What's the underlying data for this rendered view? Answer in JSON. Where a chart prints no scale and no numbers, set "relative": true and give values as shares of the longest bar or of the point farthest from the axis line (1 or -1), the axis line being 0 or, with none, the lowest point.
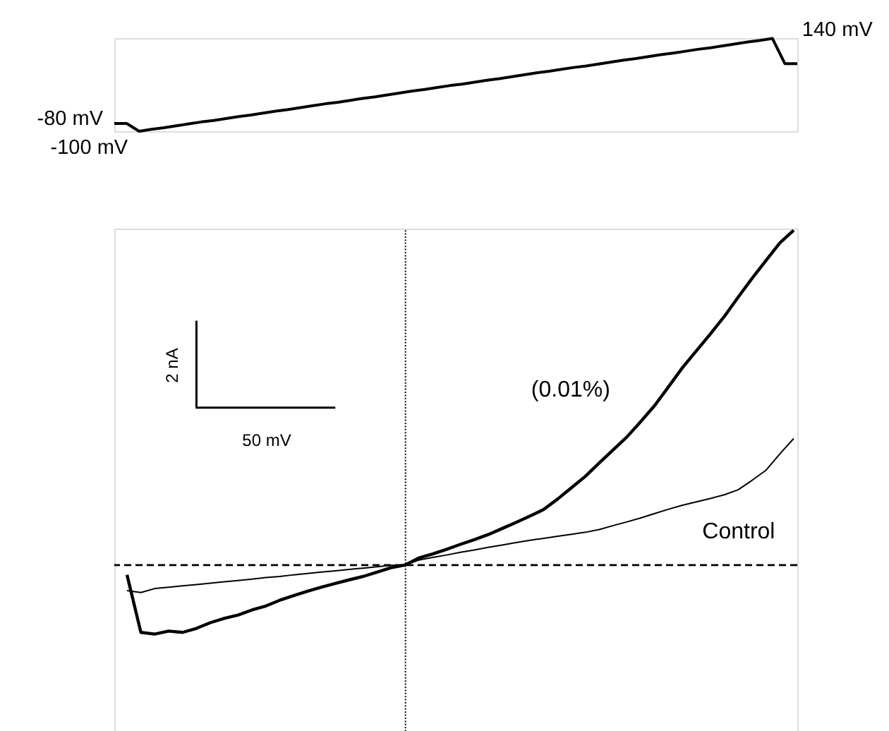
{
  "chart_data": [
    {
      "type": "line",
      "categories": [
        null,
        null,
        null,
        null,
        null,
        null,
        null,
        null,
        null,
        null,
        null,
        null,
        null,
        null,
        null,
        null,
        null,
        null,
        null,
        null,
        null,
        null,
        null,
        null,
        null,
        null,
        null,
        null,
        null,
        null,
        null,
        null,
        null,
        null,
        null,
        null,
        null,
        null,
        null,
        null,
        null,
        null,
        null,
        null,
        null,
        null,
        null,
        null,
        null,
        null,
        null,
        null,
        null,
        null,
        null,
        null
      ],
      "values": [
        -80,
        -80,
        -100,
        -95,
        -91,
        -86,
        -81,
        -76,
        -72,
        -67,
        -62,
        -58,
        -53,
        -48,
        -44,
        -39,
        -34,
        -29,
        -25,
        -20,
        -15,
        -11,
        -6,
        -1,
        4,
        8,
        13,
        18,
        22,
        27,
        32,
        36,
        41,
        46,
        51,
        55,
        60,
        65,
        69,
        74,
        79,
        84,
        88,
        93,
        98,
        102,
        107,
        112,
        116,
        121,
        126,
        131,
        135,
        140,
        75,
        75
      ],
      "color": "#000000",
      "value_labels": [
        "-80 mV",
        null,
        "-100 mV",
        null,
        null,
        null,
        null,
        null,
        null,
        null,
        null,
        null,
        null,
        null,
        null,
        null,
        null,
        null,
        null,
        null,
        null,
        null,
        null,
        null,
        null,
        null,
        null,
        null,
        null,
        null,
        null,
        null,
        null,
        null,
        null,
        null,
        null,
        null,
        null,
        null,
        null,
        null,
        null,
        null,
        null,
        null,
        null,
        null,
        null,
        null,
        null,
        null,
        null,
        "140 mV",
        null,
        null
      ],
      "tick_labels": false
    },
    {
      "type": "line",
      "relative": true,
      "tick_labels": false,
      "categories": [
        null,
        null,
        null,
        null,
        null,
        null,
        null,
        null,
        null,
        null,
        null,
        null,
        null,
        null,
        null,
        null,
        null,
        null,
        null,
        null,
        null,
        null,
        null,
        null,
        null,
        null,
        null,
        null,
        null,
        null,
        null,
        null,
        null,
        null,
        null,
        null,
        null,
        null,
        null,
        null,
        null,
        null,
        null,
        null,
        null,
        null,
        null,
        null,
        null
      ],
      "series": [
        {
          "name": "(0.01%)",
          "color": "#000000",
          "values": [
            -0.029,
            -0.201,
            -0.206,
            -0.197,
            -0.201,
            -0.189,
            -0.172,
            -0.159,
            -0.149,
            -0.134,
            -0.122,
            -0.105,
            -0.091,
            -0.078,
            -0.066,
            -0.055,
            -0.044,
            -0.034,
            -0.021,
            -0.008,
            0,
            0.021,
            0.033,
            0.047,
            0.062,
            0.076,
            0.091,
            0.109,
            0.127,
            0.146,
            0.166,
            0.197,
            0.231,
            0.265,
            0.305,
            0.344,
            0.383,
            0.429,
            0.477,
            0.533,
            0.59,
            0.64,
            0.69,
            0.742,
            0.8,
            0.856,
            0.909,
            0.962,
            1
          ]
        },
        {
          "name": "Control",
          "color": "#000000",
          "values": [
            -0.076,
            -0.082,
            -0.07,
            -0.066,
            -0.062,
            -0.058,
            -0.054,
            -0.05,
            -0.046,
            -0.042,
            -0.037,
            -0.034,
            -0.029,
            -0.025,
            -0.021,
            -0.017,
            -0.013,
            -0.009,
            -0.005,
            -0.001,
            0,
            0.015,
            0.023,
            0.03,
            0.038,
            0.045,
            0.053,
            0.06,
            0.067,
            0.074,
            0.08,
            0.086,
            0.092,
            0.098,
            0.106,
            0.118,
            0.129,
            0.141,
            0.154,
            0.167,
            0.179,
            0.189,
            0.199,
            0.21,
            0.225,
            0.253,
            0.283,
            0.332,
            0.378
          ]
        },
        {
          "type": "step",
          "color": "#000000",
          "values": [
            null,
            null,
            null,
            null,
            null,
            0.73,
            0.47,
            0.47,
            0.47,
            0.47,
            0.47,
            0.47,
            0.47,
            0.47,
            0.47,
            0.47,
            null,
            null,
            null,
            null,
            null,
            null,
            null,
            null,
            null,
            null,
            null,
            null,
            null,
            null,
            null,
            null,
            null,
            null,
            null,
            null,
            null,
            null,
            null,
            null,
            null,
            null,
            null,
            null,
            null,
            null,
            null,
            null,
            null
          ]
        }
      ],
      "ref_lines": [
        {
          "axis": "y",
          "value": 0,
          "line_style": "dashed"
        }
      ],
      "annotations": [
        "2 nA",
        "50 mV"
      ]
    }
  ]
}
